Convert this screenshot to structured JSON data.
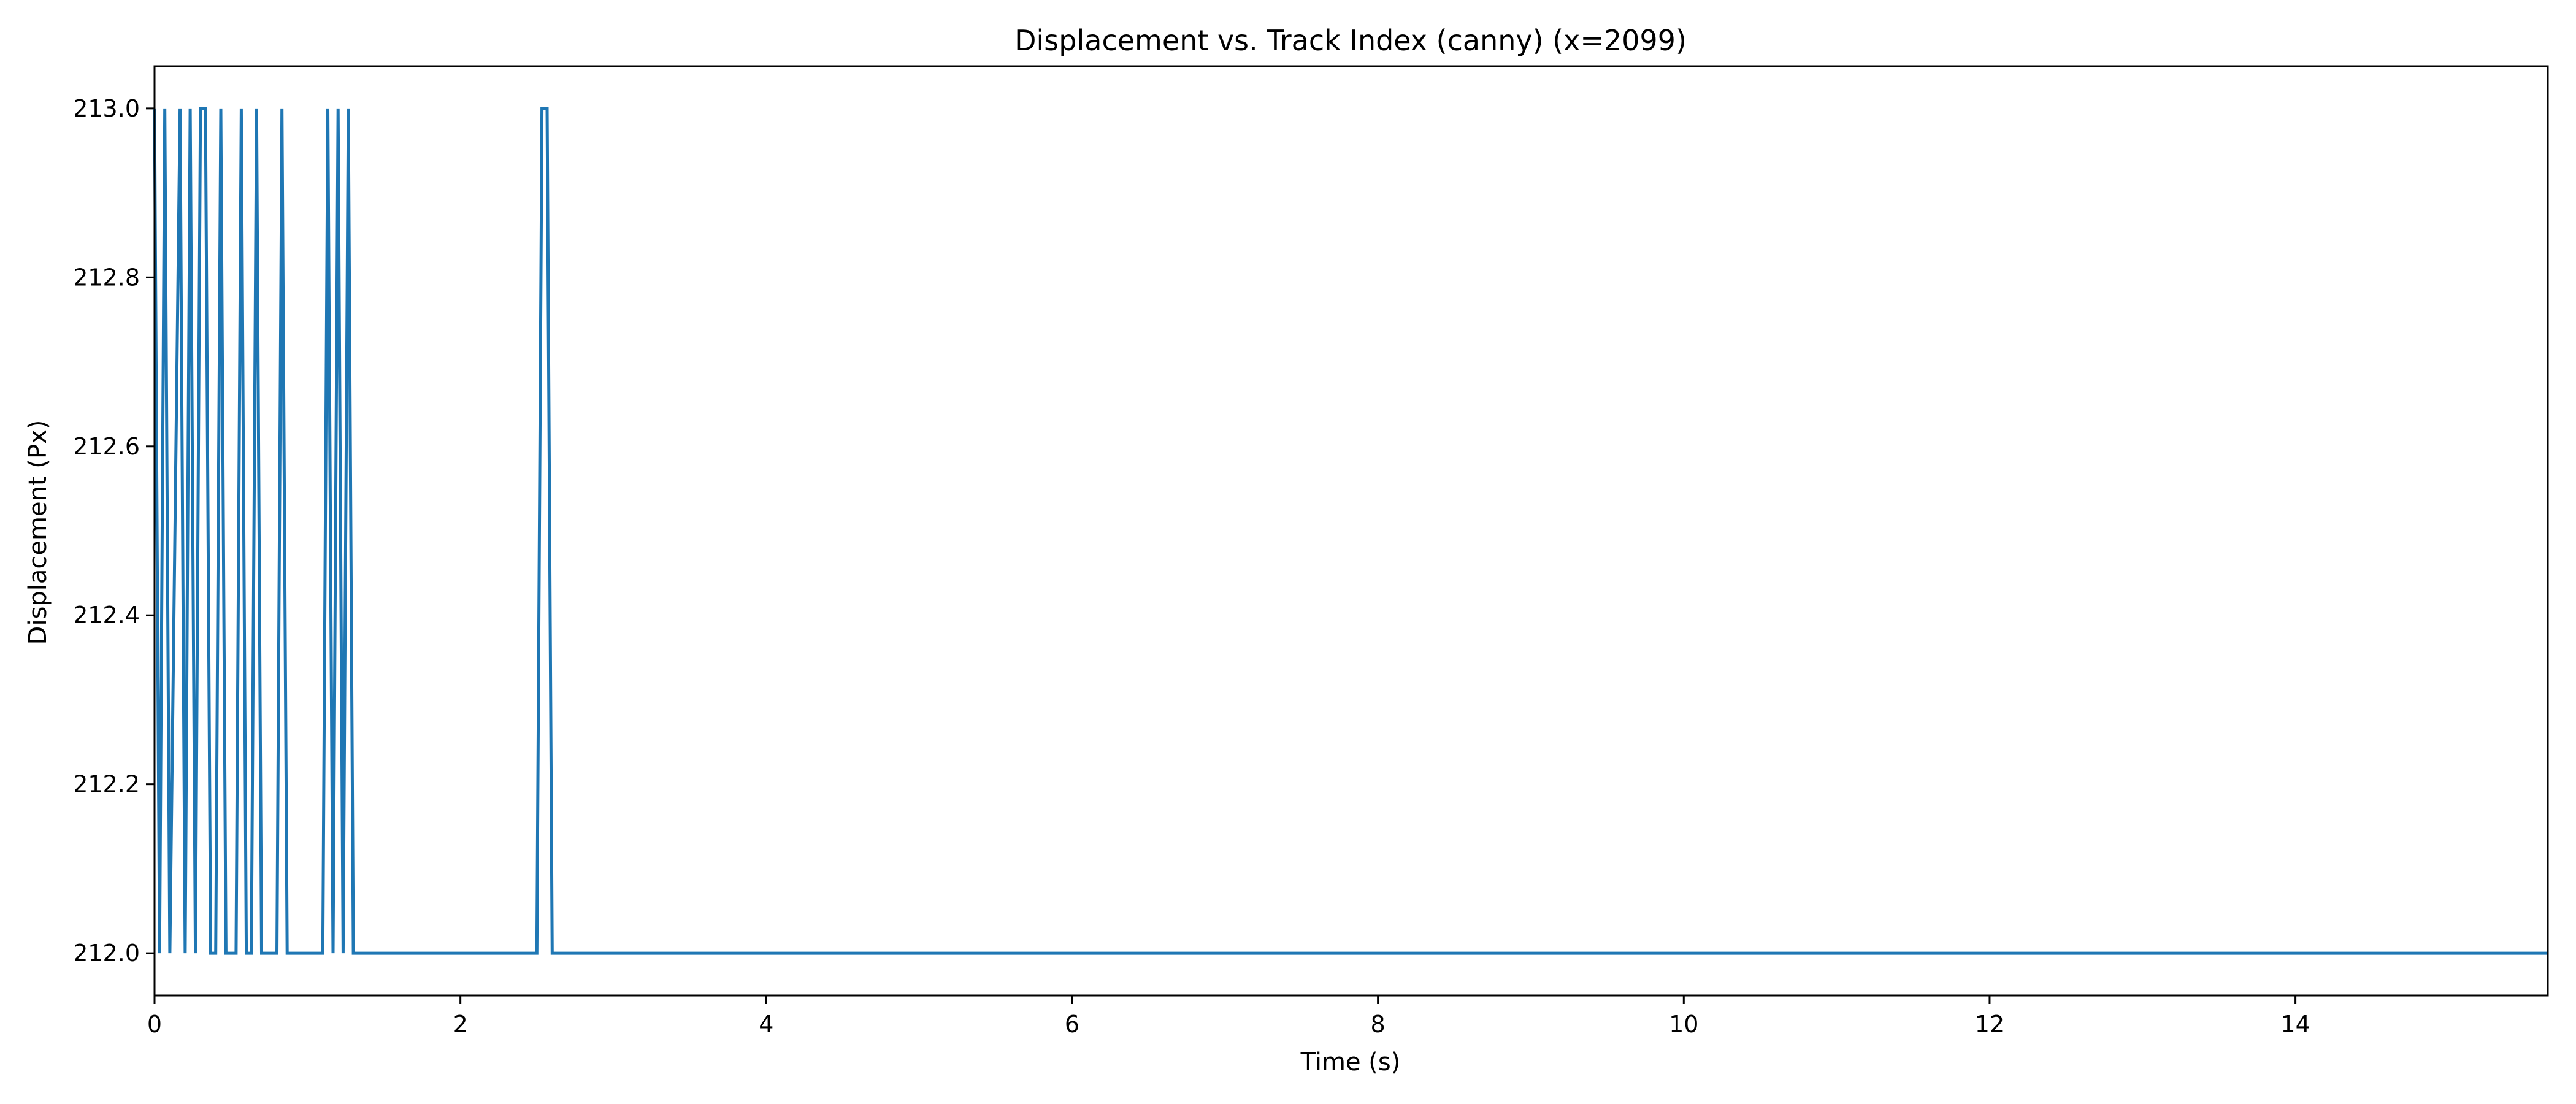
{
  "chart_data": {
    "type": "line",
    "title": "Displacement vs. Track Index (canny) (x=2099)",
    "xlabel": "Time (s)",
    "ylabel": "Displacement (Px)",
    "xlim": [
      0,
      15.65
    ],
    "ylim": [
      211.95,
      213.05
    ],
    "x_ticks": [
      0,
      2,
      4,
      6,
      8,
      10,
      12,
      14
    ],
    "y_ticks": [
      212.0,
      212.2,
      212.4,
      212.6,
      212.8,
      213.0
    ],
    "grid": false,
    "line_color": "#1f77b4",
    "series": [
      {
        "x": [
          0.0,
          0.033,
          0.067,
          0.1,
          0.167,
          0.2,
          0.233,
          0.267,
          0.3,
          0.333,
          0.367,
          0.4,
          0.433,
          0.467,
          0.5,
          0.533,
          0.567,
          0.6,
          0.633,
          0.667,
          0.7,
          0.733,
          0.767,
          0.8,
          0.833,
          0.867,
          1.1,
          1.133,
          1.167,
          1.2,
          1.233,
          1.267,
          1.3,
          1.333,
          2.5,
          2.533,
          2.567,
          2.6,
          15.65
        ],
        "y": [
          213.0,
          212.0,
          213.0,
          212.0,
          213.0,
          212.0,
          213.0,
          212.0,
          213.0,
          213.0,
          212.0,
          212.0,
          213.0,
          212.0,
          212.0,
          212.0,
          213.0,
          212.0,
          212.0,
          213.0,
          212.0,
          212.0,
          212.0,
          212.0,
          213.0,
          212.0,
          212.0,
          213.0,
          212.0,
          213.0,
          212.0,
          213.0,
          212.0,
          212.0,
          212.0,
          213.0,
          213.0,
          212.0,
          212.0
        ]
      }
    ]
  }
}
